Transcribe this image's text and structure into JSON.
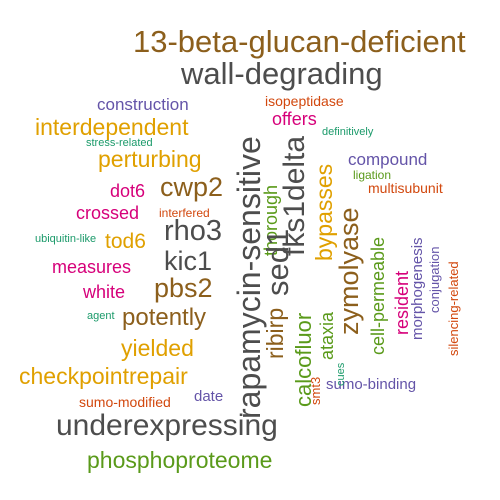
{
  "colors": {
    "brown": "#8c5f1c",
    "gray": "#4d4d4d",
    "orange": "#e0a000",
    "purple": "#6454a8",
    "magenta": "#d6007a",
    "green": "#5a9a1a",
    "teal": "#1b9a6a",
    "red_orange": "#d2480e",
    "background": "#ffffff"
  },
  "words": [
    {
      "text": "13-beta-glucan-deficient",
      "color": "brown"
    },
    {
      "text": "wall-degrading",
      "color": "gray"
    },
    {
      "text": "construction",
      "color": "purple"
    },
    {
      "text": "isopeptidase",
      "color": "red_orange"
    },
    {
      "text": "interdependent",
      "color": "orange"
    },
    {
      "text": "offers",
      "color": "magenta"
    },
    {
      "text": "stress-related",
      "color": "teal"
    },
    {
      "text": "definitively",
      "color": "teal"
    },
    {
      "text": "perturbing",
      "color": "orange"
    },
    {
      "text": "compound",
      "color": "purple"
    },
    {
      "text": "ligation",
      "color": "green"
    },
    {
      "text": "dot6",
      "color": "magenta"
    },
    {
      "text": "cwp2",
      "color": "brown"
    },
    {
      "text": "multisubunit",
      "color": "red_orange"
    },
    {
      "text": "crossed",
      "color": "magenta"
    },
    {
      "text": "interfered",
      "color": "red_orange"
    },
    {
      "text": "rho3",
      "color": "gray"
    },
    {
      "text": "ubiquitin-like",
      "color": "teal"
    },
    {
      "text": "tod6",
      "color": "orange"
    },
    {
      "text": "kic1",
      "color": "gray"
    },
    {
      "text": "measures",
      "color": "magenta"
    },
    {
      "text": "white",
      "color": "magenta"
    },
    {
      "text": "pbs2",
      "color": "brown"
    },
    {
      "text": "agent",
      "color": "teal"
    },
    {
      "text": "potently",
      "color": "brown"
    },
    {
      "text": "yielded",
      "color": "orange"
    },
    {
      "text": "checkpointrepair",
      "color": "orange"
    },
    {
      "text": "sumo-modified",
      "color": "red_orange"
    },
    {
      "text": "date",
      "color": "purple"
    },
    {
      "text": "underexpressing",
      "color": "gray"
    },
    {
      "text": "phosphoproteome",
      "color": "green"
    },
    {
      "text": "rapamycin-sensitive",
      "color": "gray"
    },
    {
      "text": "thorough",
      "color": "green"
    },
    {
      "text": "fks1delta",
      "color": "gray"
    },
    {
      "text": "sed1",
      "color": "gray"
    },
    {
      "text": "ribirp",
      "color": "brown"
    },
    {
      "text": "calcofluor",
      "color": "green"
    },
    {
      "text": "bypasses",
      "color": "orange"
    },
    {
      "text": "zymolyase",
      "color": "brown"
    },
    {
      "text": "ataxia",
      "color": "green"
    },
    {
      "text": "smt3",
      "color": "red_orange"
    },
    {
      "text": "cues",
      "color": "teal"
    },
    {
      "text": "cell-permeable",
      "color": "green"
    },
    {
      "text": "resident",
      "color": "magenta"
    },
    {
      "text": "morphogenesis",
      "color": "purple"
    },
    {
      "text": "conjugation",
      "color": "purple"
    },
    {
      "text": "silencing-related",
      "color": "red_orange"
    },
    {
      "text": "sumo-binding",
      "color": "purple"
    }
  ]
}
